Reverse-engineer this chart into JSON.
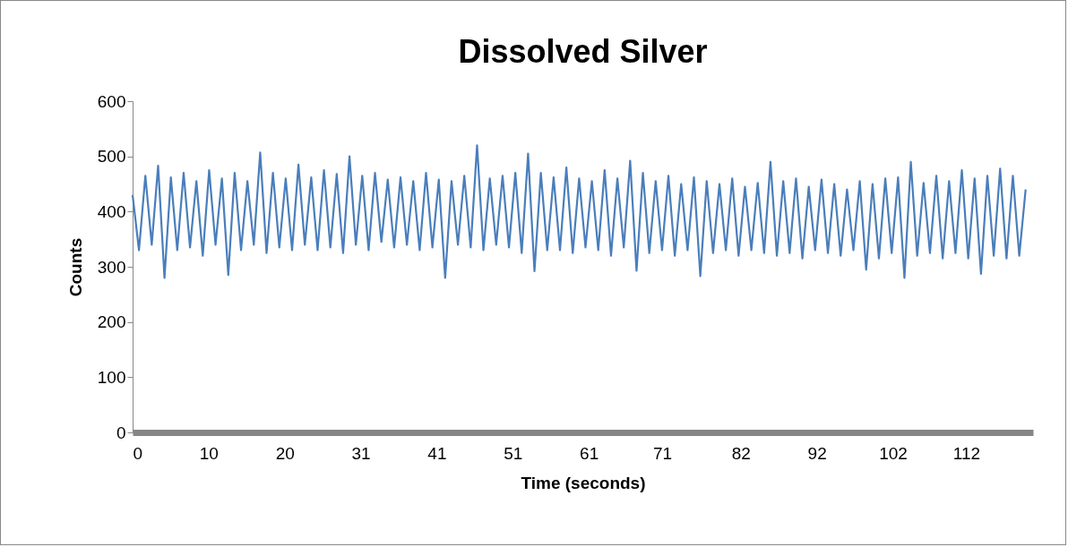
{
  "chart_data": {
    "type": "line",
    "title": "Dissolved Silver",
    "xlabel": "Time (seconds)",
    "ylabel": "Counts",
    "x": [
      0,
      0.86,
      1.72,
      2.58,
      3.44,
      4.3,
      5.16,
      6.02,
      6.88,
      7.74,
      8.6,
      9.46,
      10.32,
      11.18,
      12.04,
      12.9,
      13.76,
      14.62,
      15.48,
      16.34,
      17.2,
      18.06,
      18.92,
      19.78,
      20.64,
      21.5,
      22.36,
      23.22,
      24.08,
      24.94,
      25.8,
      26.66,
      27.52,
      28.38,
      29.24,
      30.1,
      30.96,
      31.82,
      32.68,
      33.54,
      34.4,
      35.26,
      36.12,
      36.98,
      37.84,
      38.7,
      39.56,
      40.42,
      41.28,
      42.14,
      43,
      43.86,
      44.72,
      45.58,
      46.44,
      47.3,
      48.16,
      49.02,
      49.88,
      50.74,
      51.6,
      52.46,
      53.32,
      54.18,
      55.04,
      55.9,
      56.76,
      57.62,
      58.48,
      59.34,
      60.2,
      61.06,
      61.92,
      62.78,
      63.64,
      64.5,
      65.36,
      66.22,
      67.08,
      67.94,
      68.8,
      69.66,
      70.52,
      71.38,
      72.24,
      73.1,
      73.96,
      74.82,
      75.68,
      76.54,
      77.4,
      78.26,
      79.12,
      79.98,
      80.84,
      81.7,
      82.56,
      83.42,
      84.28,
      85.14,
      86,
      86.86,
      87.72,
      88.58,
      89.44,
      90.3,
      91.16,
      92.02,
      92.88,
      93.74,
      94.6,
      95.46,
      96.32,
      97.18,
      98.04,
      98.9,
      99.76,
      100.62,
      101.48,
      102.34,
      103.2,
      104.06,
      104.92,
      105.78,
      106.64,
      107.5,
      108.36,
      109.22,
      110.08,
      110.94,
      111.8,
      112.66,
      113.52,
      114.38,
      115.24,
      116.1,
      116.96,
      117.82,
      118.68,
      119.54,
      120.4
    ],
    "series": [
      {
        "color": "#4a7ebb",
        "values": [
          430,
          330,
          465,
          340,
          483,
          280,
          462,
          330,
          470,
          335,
          455,
          320,
          475,
          340,
          460,
          285,
          470,
          330,
          455,
          340,
          507,
          325,
          470,
          335,
          460,
          330,
          485,
          340,
          462,
          330,
          475,
          335,
          468,
          325,
          500,
          340,
          465,
          330,
          470,
          345,
          458,
          335,
          462,
          340,
          455,
          330,
          470,
          335,
          458,
          280,
          455,
          340,
          465,
          335,
          520,
          330,
          460,
          340,
          465,
          335,
          470,
          325,
          505,
          292,
          470,
          330,
          462,
          330,
          480,
          325,
          460,
          335,
          455,
          330,
          475,
          320,
          460,
          335,
          492,
          293,
          470,
          325,
          455,
          330,
          465,
          320,
          450,
          330,
          462,
          283,
          455,
          325,
          450,
          330,
          460,
          320,
          445,
          330,
          452,
          325,
          490,
          320,
          455,
          325,
          460,
          315,
          445,
          330,
          458,
          325,
          450,
          320,
          440,
          330,
          455,
          295,
          450,
          315,
          460,
          325,
          462,
          280,
          490,
          320,
          452,
          325,
          465,
          315,
          455,
          325,
          475,
          315,
          460,
          287,
          465,
          320,
          478,
          315,
          465,
          320,
          440
        ]
      }
    ],
    "xlim": [
      0,
      121.4
    ],
    "xticks": [
      0,
      {
        "value": 10.25,
        "label": "10"
      },
      {
        "value": 20.5,
        "label": "20"
      },
      {
        "value": 30.75,
        "label": "31"
      },
      41,
      {
        "value": 51.25,
        "label": "51"
      },
      {
        "value": 61.5,
        "label": "61"
      },
      {
        "value": 71.4,
        "label": "71"
      },
      82,
      {
        "value": 92.25,
        "label": "92"
      },
      {
        "value": 102.5,
        "label": "102"
      },
      {
        "value": 112.4,
        "label": "112"
      }
    ],
    "ylim": [
      0,
      600
    ],
    "yticks": [
      0,
      100,
      200,
      300,
      400,
      500,
      600
    ],
    "grid": false,
    "marker": "none",
    "line_style": "solid"
  }
}
